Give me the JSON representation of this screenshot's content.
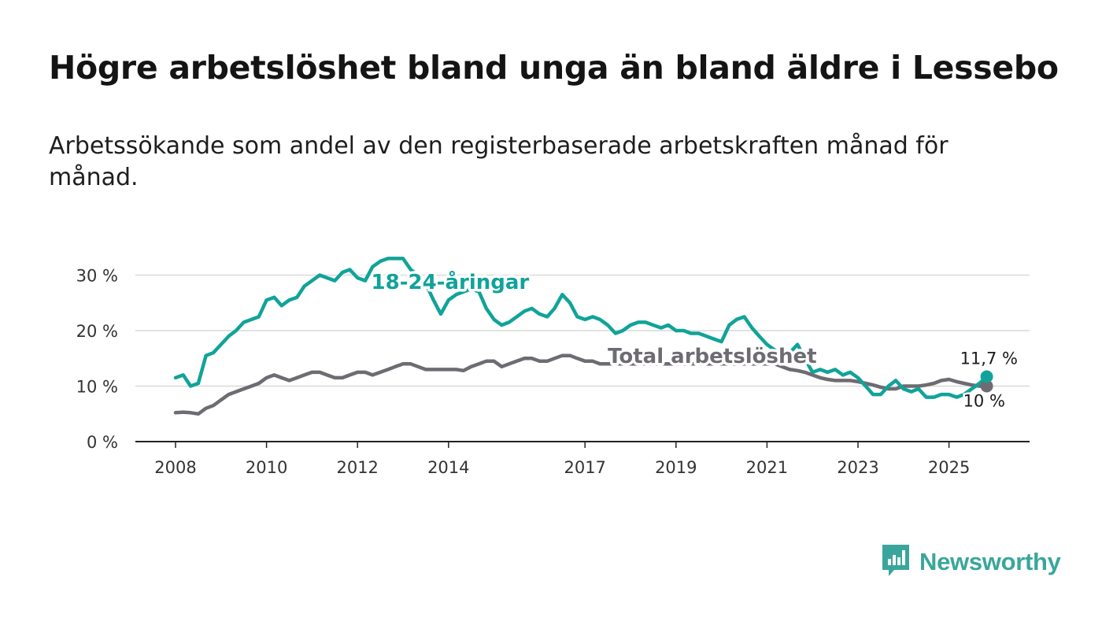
{
  "title": "Högre arbetslöshet bland unga än bland äldre i Lessebo",
  "subtitle": "Arbetssökande som andel av den registerbaserade arbetskraften månad för månad.",
  "brand": {
    "name": "Newsworthy",
    "icon": "bar-chart-icon",
    "color": "#3aa69b"
  },
  "chart_data": {
    "type": "line",
    "title": "Högre arbetslöshet bland unga än bland äldre i Lessebo",
    "xlabel": "",
    "ylabel": "",
    "ylim": [
      0,
      35
    ],
    "xlim": [
      2007.5,
      2026.8
    ],
    "yticks": [
      0,
      10,
      20,
      30
    ],
    "ytick_labels": [
      "0 %",
      "10 %",
      "20 %",
      "30 %"
    ],
    "xticks": [
      2008,
      2010,
      2012,
      2014,
      2017,
      2019,
      2021,
      2023,
      2025
    ],
    "xtick_labels": [
      "2008",
      "2010",
      "2012",
      "2014",
      "2017",
      "2019",
      "2021",
      "2023",
      "2025"
    ],
    "grid": true,
    "series": [
      {
        "name": "18-24-åringar",
        "label": "18-24-åringar",
        "color": "#11a39a",
        "end_label": "11,7 %",
        "end_value": 11.7,
        "x": [
          2008.0,
          2008.17,
          2008.33,
          2008.5,
          2008.67,
          2008.83,
          2009.0,
          2009.17,
          2009.33,
          2009.5,
          2009.67,
          2009.83,
          2010.0,
          2010.17,
          2010.33,
          2010.5,
          2010.67,
          2010.83,
          2011.0,
          2011.17,
          2011.33,
          2011.5,
          2011.67,
          2011.83,
          2012.0,
          2012.17,
          2012.33,
          2012.5,
          2012.67,
          2012.83,
          2013.0,
          2013.17,
          2013.33,
          2013.5,
          2013.67,
          2013.83,
          2014.0,
          2014.17,
          2014.33,
          2014.5,
          2014.67,
          2014.83,
          2015.0,
          2015.17,
          2015.33,
          2015.5,
          2015.67,
          2015.83,
          2016.0,
          2016.17,
          2016.33,
          2016.5,
          2016.67,
          2016.83,
          2017.0,
          2017.17,
          2017.33,
          2017.5,
          2017.67,
          2017.83,
          2018.0,
          2018.17,
          2018.33,
          2018.5,
          2018.67,
          2018.83,
          2019.0,
          2019.17,
          2019.33,
          2019.5,
          2019.67,
          2019.83,
          2020.0,
          2020.17,
          2020.33,
          2020.5,
          2020.67,
          2020.83,
          2021.0,
          2021.17,
          2021.33,
          2021.5,
          2021.67,
          2021.83,
          2022.0,
          2022.17,
          2022.33,
          2022.5,
          2022.67,
          2022.83,
          2023.0,
          2023.17,
          2023.33,
          2023.5,
          2023.67,
          2023.83,
          2024.0,
          2024.17,
          2024.33,
          2024.5,
          2024.67,
          2024.83,
          2025.0,
          2025.17,
          2025.33,
          2025.5,
          2025.67,
          2025.83
        ],
        "values": [
          11.5,
          12.0,
          10.0,
          10.5,
          15.5,
          16.0,
          17.5,
          19.0,
          20.0,
          21.5,
          22.0,
          22.5,
          25.5,
          26.0,
          24.5,
          25.5,
          26.0,
          28.0,
          29.0,
          30.0,
          29.5,
          29.0,
          30.5,
          31.0,
          29.5,
          29.0,
          31.5,
          32.5,
          33.0,
          33.0,
          33.0,
          31.0,
          30.0,
          28.5,
          25.5,
          23.0,
          25.5,
          26.5,
          27.0,
          27.5,
          27.0,
          24.0,
          22.0,
          21.0,
          21.5,
          22.5,
          23.5,
          24.0,
          23.0,
          22.5,
          24.0,
          26.5,
          25.0,
          22.5,
          22.0,
          22.5,
          22.0,
          21.0,
          19.5,
          20.0,
          21.0,
          21.5,
          21.5,
          21.0,
          20.5,
          21.0,
          20.0,
          20.0,
          19.5,
          19.5,
          19.0,
          18.5,
          18.0,
          21.0,
          22.0,
          22.5,
          20.5,
          19.0,
          17.5,
          16.5,
          15.5,
          16.0,
          17.5,
          15.0,
          12.5,
          13.0,
          12.5,
          13.0,
          12.0,
          12.5,
          11.5,
          10.0,
          8.5,
          8.5,
          10.0,
          11.0,
          9.5,
          9.0,
          9.5,
          8.0,
          8.0,
          8.5,
          8.5,
          8.0,
          8.5,
          9.5,
          10.5,
          11.7
        ]
      },
      {
        "name": "Total arbetslöshet",
        "label": "Total arbetslöshet",
        "color": "#6e6b72",
        "end_label": "10 %",
        "end_value": 10.0,
        "x": [
          2008.0,
          2008.17,
          2008.33,
          2008.5,
          2008.67,
          2008.83,
          2009.0,
          2009.17,
          2009.33,
          2009.5,
          2009.67,
          2009.83,
          2010.0,
          2010.17,
          2010.33,
          2010.5,
          2010.67,
          2010.83,
          2011.0,
          2011.17,
          2011.33,
          2011.5,
          2011.67,
          2011.83,
          2012.0,
          2012.17,
          2012.33,
          2012.5,
          2012.67,
          2012.83,
          2013.0,
          2013.17,
          2013.33,
          2013.5,
          2013.67,
          2013.83,
          2014.0,
          2014.17,
          2014.33,
          2014.5,
          2014.67,
          2014.83,
          2015.0,
          2015.17,
          2015.33,
          2015.5,
          2015.67,
          2015.83,
          2016.0,
          2016.17,
          2016.33,
          2016.5,
          2016.67,
          2016.83,
          2017.0,
          2017.17,
          2017.33,
          2017.5,
          2017.67,
          2017.83,
          2018.0,
          2018.17,
          2018.33,
          2018.5,
          2018.67,
          2018.83,
          2019.0,
          2019.17,
          2019.33,
          2019.5,
          2019.67,
          2019.83,
          2020.0,
          2020.17,
          2020.33,
          2020.5,
          2020.67,
          2020.83,
          2021.0,
          2021.17,
          2021.33,
          2021.5,
          2021.67,
          2021.83,
          2022.0,
          2022.17,
          2022.33,
          2022.5,
          2022.67,
          2022.83,
          2023.0,
          2023.17,
          2023.33,
          2023.5,
          2023.67,
          2023.83,
          2024.0,
          2024.17,
          2024.33,
          2024.5,
          2024.67,
          2024.83,
          2025.0,
          2025.17,
          2025.33,
          2025.5,
          2025.67,
          2025.83
        ],
        "values": [
          5.2,
          5.3,
          5.2,
          5.0,
          6.0,
          6.5,
          7.5,
          8.5,
          9.0,
          9.5,
          10.0,
          10.5,
          11.5,
          12.0,
          11.5,
          11.0,
          11.5,
          12.0,
          12.5,
          12.5,
          12.0,
          11.5,
          11.5,
          12.0,
          12.5,
          12.5,
          12.0,
          12.5,
          13.0,
          13.5,
          14.0,
          14.0,
          13.5,
          13.0,
          13.0,
          13.0,
          13.0,
          13.0,
          12.8,
          13.5,
          14.0,
          14.5,
          14.5,
          13.5,
          14.0,
          14.5,
          15.0,
          15.0,
          14.5,
          14.5,
          15.0,
          15.5,
          15.5,
          15.0,
          14.5,
          14.5,
          14.0,
          14.0,
          14.0,
          14.0,
          14.0,
          14.0,
          14.0,
          14.0,
          14.0,
          14.0,
          14.0,
          14.0,
          14.0,
          14.0,
          14.0,
          14.0,
          14.0,
          14.0,
          14.0,
          14.0,
          14.0,
          14.0,
          14.0,
          14.0,
          13.5,
          13.0,
          12.8,
          12.5,
          12.0,
          11.5,
          11.2,
          11.0,
          11.0,
          11.0,
          10.8,
          10.5,
          10.2,
          9.8,
          9.5,
          9.5,
          10.0,
          10.0,
          10.0,
          10.2,
          10.5,
          11.0,
          11.2,
          10.8,
          10.5,
          10.2,
          10.0,
          10.0
        ]
      }
    ]
  }
}
